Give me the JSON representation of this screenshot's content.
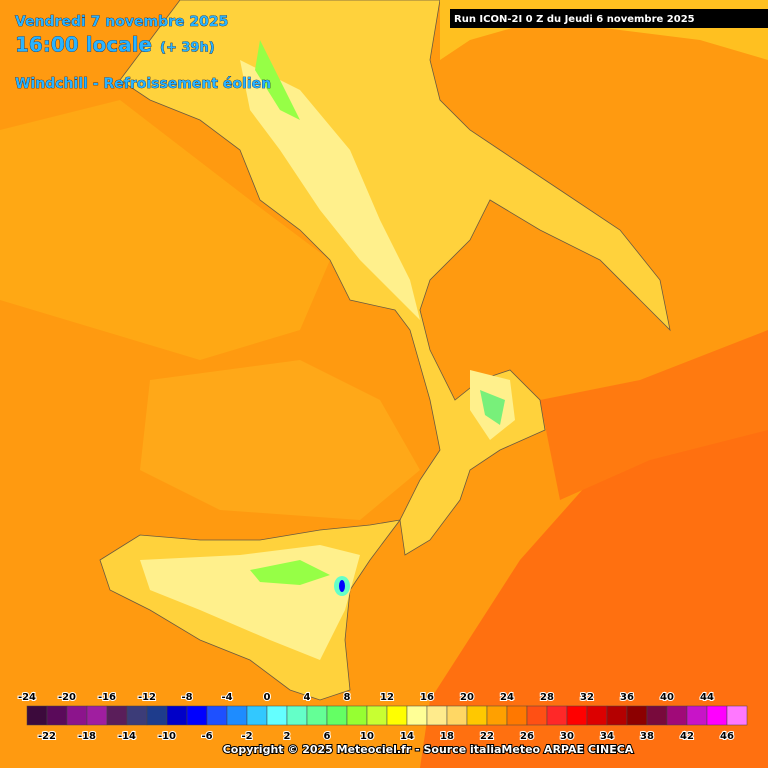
{
  "header": {
    "date": "Vendredi 7 novembre 2025",
    "time": "16:00 locale",
    "lead": "(+ 39h)",
    "parameter": "Windchill - Refroissement éolien",
    "run": "Run ICON-2I 0 Z du Jeudi 6 novembre 2025"
  },
  "legend": {
    "steps": [
      {
        "value": -24,
        "color": "#3c0a3c"
      },
      {
        "value": -22,
        "color": "#5a0a5a"
      },
      {
        "value": -20,
        "color": "#8c148c"
      },
      {
        "value": -18,
        "color": "#a01ea0"
      },
      {
        "value": -16,
        "color": "#5a1e5a"
      },
      {
        "value": -14,
        "color": "#3c3c78"
      },
      {
        "value": -12,
        "color": "#1e3c8c"
      },
      {
        "value": -10,
        "color": "#0000c8"
      },
      {
        "value": -8,
        "color": "#0000ff"
      },
      {
        "value": -6,
        "color": "#1e50ff"
      },
      {
        "value": -4,
        "color": "#1e8cff"
      },
      {
        "value": -2,
        "color": "#32c8ff"
      },
      {
        "value": 0,
        "color": "#64ffff"
      },
      {
        "value": 2,
        "color": "#64ffc8"
      },
      {
        "value": 4,
        "color": "#64ff96"
      },
      {
        "value": 6,
        "color": "#64ff64"
      },
      {
        "value": 8,
        "color": "#96ff32"
      },
      {
        "value": 10,
        "color": "#c8ff32"
      },
      {
        "value": 12,
        "color": "#ffff00"
      },
      {
        "value": 14,
        "color": "#ffff96"
      },
      {
        "value": 16,
        "color": "#ffeb8c"
      },
      {
        "value": 18,
        "color": "#ffd764"
      },
      {
        "value": 20,
        "color": "#ffc800"
      },
      {
        "value": 22,
        "color": "#ffa000"
      },
      {
        "value": 24,
        "color": "#ff7800"
      },
      {
        "value": 26,
        "color": "#ff5014"
      },
      {
        "value": 28,
        "color": "#ff2828"
      },
      {
        "value": 30,
        "color": "#ff0000"
      },
      {
        "value": 32,
        "color": "#dc0000"
      },
      {
        "value": 34,
        "color": "#b40000"
      },
      {
        "value": 36,
        "color": "#8c0000"
      },
      {
        "value": 38,
        "color": "#780a3c"
      },
      {
        "value": 40,
        "color": "#a00a78"
      },
      {
        "value": 42,
        "color": "#c814c8"
      },
      {
        "value": 44,
        "color": "#ff00ff"
      },
      {
        "value": 46,
        "color": "#ff78ff"
      }
    ]
  },
  "footer": {
    "copyright": "Copyright © 2025 Meteociel.fr - Source italiaMeteo ARPAE CINECA"
  }
}
